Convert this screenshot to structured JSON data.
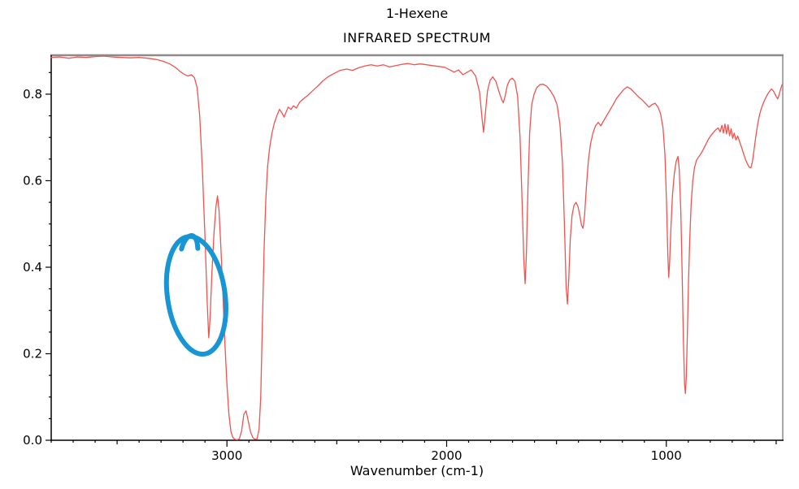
{
  "page": {
    "background": "#ffffff"
  },
  "chart_data": {
    "type": "line",
    "title": "1-Hexene",
    "subtitle": "INFRARED SPECTRUM",
    "xlabel": "Wavenumber (cm-1)",
    "ylabel": "",
    "grid": false,
    "legend": "none",
    "x_axis": {
      "min": 470,
      "max": 3800,
      "inverted": true,
      "major_ticks": [
        3000,
        2000,
        1000
      ],
      "major_tick_labels": [
        "3000",
        "2000",
        "1000"
      ],
      "minor_tick_step": 100,
      "medium_tick_step": 500
    },
    "y_axis": {
      "min": 0.0,
      "max": 0.89,
      "major_ticks": [
        0.0,
        0.2,
        0.4,
        0.6,
        0.8
      ],
      "major_tick_labels": [
        "0.0",
        "0.2",
        "0.4",
        "0.6",
        "0.8"
      ],
      "minor_tick_step": 0.05
    },
    "frame": {
      "top_right_color": "#8c8c8c",
      "axis_color": "#000000"
    },
    "series": [
      {
        "name": "infrared-spectrum",
        "color": "#ef5350",
        "points": [
          [
            3800,
            0.885
          ],
          [
            3760,
            0.886
          ],
          [
            3720,
            0.883
          ],
          [
            3680,
            0.886
          ],
          [
            3640,
            0.885
          ],
          [
            3600,
            0.887
          ],
          [
            3560,
            0.888
          ],
          [
            3520,
            0.886
          ],
          [
            3480,
            0.885
          ],
          [
            3440,
            0.884
          ],
          [
            3400,
            0.885
          ],
          [
            3360,
            0.883
          ],
          [
            3320,
            0.88
          ],
          [
            3290,
            0.876
          ],
          [
            3260,
            0.87
          ],
          [
            3235,
            0.862
          ],
          [
            3215,
            0.853
          ],
          [
            3195,
            0.846
          ],
          [
            3178,
            0.842
          ],
          [
            3162,
            0.845
          ],
          [
            3148,
            0.838
          ],
          [
            3136,
            0.815
          ],
          [
            3124,
            0.75
          ],
          [
            3112,
            0.63
          ],
          [
            3100,
            0.47
          ],
          [
            3090,
            0.32
          ],
          [
            3083,
            0.237
          ],
          [
            3077,
            0.28
          ],
          [
            3068,
            0.39
          ],
          [
            3059,
            0.48
          ],
          [
            3050,
            0.54
          ],
          [
            3043,
            0.565
          ],
          [
            3036,
            0.53
          ],
          [
            3027,
            0.44
          ],
          [
            3018,
            0.33
          ],
          [
            3009,
            0.22
          ],
          [
            3000,
            0.13
          ],
          [
            2991,
            0.06
          ],
          [
            2982,
            0.02
          ],
          [
            2973,
            0.006
          ],
          [
            2963,
            0.002
          ],
          [
            2953,
            0.001
          ],
          [
            2943,
            0.004
          ],
          [
            2933,
            0.022
          ],
          [
            2923,
            0.06
          ],
          [
            2913,
            0.068
          ],
          [
            2903,
            0.045
          ],
          [
            2893,
            0.02
          ],
          [
            2883,
            0.007
          ],
          [
            2873,
            0.002
          ],
          [
            2863,
            0.003
          ],
          [
            2854,
            0.025
          ],
          [
            2846,
            0.1
          ],
          [
            2839,
            0.26
          ],
          [
            2831,
            0.44
          ],
          [
            2823,
            0.56
          ],
          [
            2815,
            0.632
          ],
          [
            2806,
            0.675
          ],
          [
            2796,
            0.708
          ],
          [
            2785,
            0.732
          ],
          [
            2773,
            0.75
          ],
          [
            2761,
            0.765
          ],
          [
            2749,
            0.756
          ],
          [
            2740,
            0.747
          ],
          [
            2731,
            0.758
          ],
          [
            2721,
            0.77
          ],
          [
            2709,
            0.765
          ],
          [
            2697,
            0.773
          ],
          [
            2684,
            0.768
          ],
          [
            2668,
            0.782
          ],
          [
            2650,
            0.79
          ],
          [
            2630,
            0.798
          ],
          [
            2610,
            0.808
          ],
          [
            2588,
            0.818
          ],
          [
            2565,
            0.83
          ],
          [
            2540,
            0.84
          ],
          [
            2512,
            0.848
          ],
          [
            2484,
            0.855
          ],
          [
            2456,
            0.858
          ],
          [
            2428,
            0.855
          ],
          [
            2400,
            0.861
          ],
          [
            2372,
            0.865
          ],
          [
            2344,
            0.868
          ],
          [
            2316,
            0.865
          ],
          [
            2288,
            0.868
          ],
          [
            2260,
            0.863
          ],
          [
            2232,
            0.866
          ],
          [
            2204,
            0.869
          ],
          [
            2176,
            0.871
          ],
          [
            2148,
            0.868
          ],
          [
            2120,
            0.87
          ],
          [
            2092,
            0.868
          ],
          [
            2064,
            0.866
          ],
          [
            2036,
            0.864
          ],
          [
            2008,
            0.862
          ],
          [
            1988,
            0.857
          ],
          [
            1966,
            0.851
          ],
          [
            1946,
            0.856
          ],
          [
            1926,
            0.845
          ],
          [
            1906,
            0.851
          ],
          [
            1888,
            0.856
          ],
          [
            1868,
            0.842
          ],
          [
            1850,
            0.805
          ],
          [
            1839,
            0.745
          ],
          [
            1832,
            0.712
          ],
          [
            1824,
            0.755
          ],
          [
            1814,
            0.808
          ],
          [
            1802,
            0.832
          ],
          [
            1790,
            0.84
          ],
          [
            1776,
            0.83
          ],
          [
            1762,
            0.806
          ],
          [
            1750,
            0.788
          ],
          [
            1742,
            0.78
          ],
          [
            1734,
            0.795
          ],
          [
            1724,
            0.82
          ],
          [
            1713,
            0.833
          ],
          [
            1701,
            0.837
          ],
          [
            1689,
            0.83
          ],
          [
            1677,
            0.795
          ],
          [
            1666,
            0.7
          ],
          [
            1657,
            0.56
          ],
          [
            1649,
            0.42
          ],
          [
            1643,
            0.362
          ],
          [
            1637,
            0.43
          ],
          [
            1630,
            0.58
          ],
          [
            1622,
            0.71
          ],
          [
            1613,
            0.775
          ],
          [
            1602,
            0.8
          ],
          [
            1590,
            0.815
          ],
          [
            1576,
            0.822
          ],
          [
            1560,
            0.823
          ],
          [
            1544,
            0.818
          ],
          [
            1528,
            0.808
          ],
          [
            1512,
            0.795
          ],
          [
            1497,
            0.775
          ],
          [
            1484,
            0.73
          ],
          [
            1473,
            0.645
          ],
          [
            1464,
            0.5
          ],
          [
            1456,
            0.355
          ],
          [
            1450,
            0.315
          ],
          [
            1444,
            0.375
          ],
          [
            1437,
            0.465
          ],
          [
            1429,
            0.52
          ],
          [
            1420,
            0.543
          ],
          [
            1411,
            0.55
          ],
          [
            1402,
            0.54
          ],
          [
            1394,
            0.52
          ],
          [
            1386,
            0.497
          ],
          [
            1379,
            0.49
          ],
          [
            1372,
            0.52
          ],
          [
            1364,
            0.585
          ],
          [
            1355,
            0.645
          ],
          [
            1345,
            0.685
          ],
          [
            1334,
            0.71
          ],
          [
            1322,
            0.727
          ],
          [
            1310,
            0.735
          ],
          [
            1298,
            0.727
          ],
          [
            1286,
            0.738
          ],
          [
            1272,
            0.75
          ],
          [
            1258,
            0.762
          ],
          [
            1243,
            0.775
          ],
          [
            1227,
            0.79
          ],
          [
            1211,
            0.8
          ],
          [
            1195,
            0.81
          ],
          [
            1178,
            0.817
          ],
          [
            1161,
            0.812
          ],
          [
            1144,
            0.803
          ],
          [
            1127,
            0.794
          ],
          [
            1110,
            0.787
          ],
          [
            1094,
            0.778
          ],
          [
            1079,
            0.77
          ],
          [
            1065,
            0.776
          ],
          [
            1051,
            0.779
          ],
          [
            1038,
            0.77
          ],
          [
            1026,
            0.755
          ],
          [
            1015,
            0.722
          ],
          [
            1006,
            0.66
          ],
          [
            999,
            0.55
          ],
          [
            993,
            0.43
          ],
          [
            989,
            0.376
          ],
          [
            985,
            0.41
          ],
          [
            979,
            0.49
          ],
          [
            972,
            0.565
          ],
          [
            964,
            0.615
          ],
          [
            955,
            0.645
          ],
          [
            947,
            0.656
          ],
          [
            941,
            0.625
          ],
          [
            934,
            0.53
          ],
          [
            928,
            0.39
          ],
          [
            922,
            0.23
          ],
          [
            917,
            0.13
          ],
          [
            913,
            0.108
          ],
          [
            909,
            0.15
          ],
          [
            904,
            0.25
          ],
          [
            899,
            0.37
          ],
          [
            893,
            0.47
          ],
          [
            887,
            0.545
          ],
          [
            880,
            0.598
          ],
          [
            872,
            0.63
          ],
          [
            863,
            0.647
          ],
          [
            853,
            0.655
          ],
          [
            843,
            0.662
          ],
          [
            832,
            0.672
          ],
          [
            820,
            0.684
          ],
          [
            808,
            0.696
          ],
          [
            796,
            0.705
          ],
          [
            785,
            0.712
          ],
          [
            774,
            0.718
          ],
          [
            764,
            0.722
          ],
          [
            755,
            0.713
          ],
          [
            747,
            0.728
          ],
          [
            740,
            0.71
          ],
          [
            733,
            0.731
          ],
          [
            726,
            0.708
          ],
          [
            719,
            0.729
          ],
          [
            712,
            0.704
          ],
          [
            705,
            0.72
          ],
          [
            698,
            0.698
          ],
          [
            691,
            0.71
          ],
          [
            683,
            0.694
          ],
          [
            675,
            0.703
          ],
          [
            666,
            0.69
          ],
          [
            657,
            0.676
          ],
          [
            648,
            0.662
          ],
          [
            639,
            0.648
          ],
          [
            630,
            0.638
          ],
          [
            622,
            0.631
          ],
          [
            615,
            0.63
          ],
          [
            608,
            0.644
          ],
          [
            601,
            0.67
          ],
          [
            594,
            0.697
          ],
          [
            586,
            0.724
          ],
          [
            578,
            0.747
          ],
          [
            570,
            0.763
          ],
          [
            561,
            0.776
          ],
          [
            551,
            0.788
          ],
          [
            541,
            0.798
          ],
          [
            531,
            0.806
          ],
          [
            521,
            0.812
          ],
          [
            511,
            0.806
          ],
          [
            501,
            0.796
          ],
          [
            493,
            0.789
          ],
          [
            486,
            0.8
          ],
          [
            479,
            0.813
          ],
          [
            473,
            0.822
          ]
        ]
      }
    ],
    "annotations": [
      {
        "type": "hand-drawn-circle",
        "meaning": "highlighted =C-H stretch absorption near 3080 cm-1",
        "color": "#1795d4",
        "stroke_width": 6,
        "center_wavenumber": 3140,
        "center_value": 0.335,
        "radius_wavenumber": 131,
        "radius_value": 0.137,
        "rotation_deg": -8
      }
    ]
  }
}
